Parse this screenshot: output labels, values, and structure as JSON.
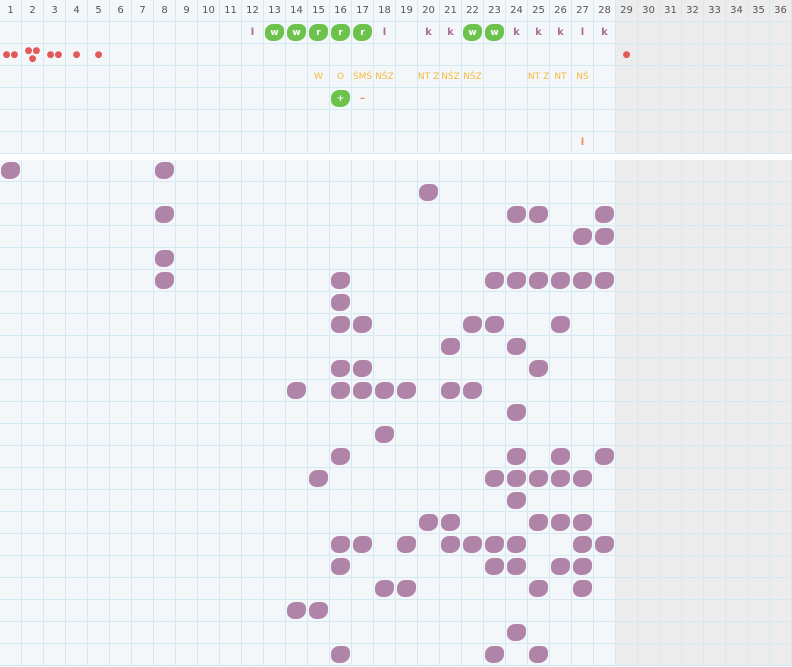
{
  "days": 36,
  "filled_days": 28,
  "colors": {
    "background": "#f3f7f9",
    "grid": "#d5e9f3",
    "future": "#ececec",
    "green": "#6cc24a",
    "purple": "#b084a9",
    "mucus": "#f5b83d",
    "blood": "#e05a5a",
    "mark": "#a86d96"
  },
  "marks_row": [
    {
      "day": 12,
      "label": "l"
    },
    {
      "day": 13,
      "label": "w",
      "badge": "green"
    },
    {
      "day": 14,
      "label": "w",
      "badge": "green"
    },
    {
      "day": 15,
      "label": "r",
      "badge": "green"
    },
    {
      "day": 16,
      "label": "r",
      "badge": "green"
    },
    {
      "day": 17,
      "label": "r",
      "badge": "green"
    },
    {
      "day": 18,
      "label": "l"
    },
    {
      "day": 20,
      "label": "k"
    },
    {
      "day": 21,
      "label": "k"
    },
    {
      "day": 22,
      "label": "w",
      "badge": "green"
    },
    {
      "day": 23,
      "label": "w",
      "badge": "green"
    },
    {
      "day": 24,
      "label": "k"
    },
    {
      "day": 25,
      "label": "k"
    },
    {
      "day": 26,
      "label": "k"
    },
    {
      "day": 27,
      "label": "l"
    },
    {
      "day": 28,
      "label": "k"
    }
  ],
  "bleeding_row": [
    {
      "day": 1,
      "drops": "♦♦",
      "level": 2
    },
    {
      "day": 2,
      "drops": "♦♦♦",
      "level": 3
    },
    {
      "day": 3,
      "drops": "♦♦",
      "level": 2
    },
    {
      "day": 4,
      "drops": "♦",
      "level": 1
    },
    {
      "day": 5,
      "drops": "♦",
      "level": 1
    },
    {
      "day": 29,
      "drops": "♦",
      "level": 1
    }
  ],
  "mucus_row": [
    {
      "day": 15,
      "label": "W"
    },
    {
      "day": 16,
      "label": "O"
    },
    {
      "day": 17,
      "label": "ŚMŚ"
    },
    {
      "day": 18,
      "label": "NŚZ"
    },
    {
      "day": 20,
      "label": "NT Z"
    },
    {
      "day": 21,
      "label": "NŚZ"
    },
    {
      "day": 22,
      "label": "NŚZ"
    },
    {
      "day": 25,
      "label": "NT Z"
    },
    {
      "day": 26,
      "label": "NT"
    },
    {
      "day": 27,
      "label": "NŚ"
    }
  ],
  "test_row": [
    {
      "day": 16,
      "label": "+",
      "badge": "green"
    },
    {
      "day": 17,
      "label": "–"
    }
  ],
  "row7": [
    {
      "day": 27,
      "label": "l"
    }
  ],
  "symptom_rows": [
    [
      1,
      8
    ],
    [
      20
    ],
    [
      8,
      24,
      25,
      28
    ],
    [
      27,
      28
    ],
    [
      8
    ],
    [
      8,
      16,
      23,
      24,
      25,
      26,
      27,
      28
    ],
    [
      16
    ],
    [
      16,
      17,
      22,
      23,
      26
    ],
    [
      21,
      24
    ],
    [
      16,
      17,
      25
    ],
    [
      14,
      16,
      17,
      18,
      19,
      21,
      22
    ],
    [
      24
    ],
    [
      18
    ],
    [
      16,
      24,
      26,
      28
    ],
    [
      15,
      23,
      24,
      25,
      26,
      27
    ],
    [
      24
    ],
    [
      20,
      21,
      25,
      26,
      27
    ],
    [
      16,
      17,
      19,
      21,
      22,
      23,
      24,
      27,
      28
    ],
    [
      16,
      23,
      24,
      26,
      27
    ],
    [
      18,
      19,
      25,
      27
    ],
    [
      14,
      15
    ],
    [
      24
    ],
    [
      16,
      23,
      25
    ]
  ]
}
